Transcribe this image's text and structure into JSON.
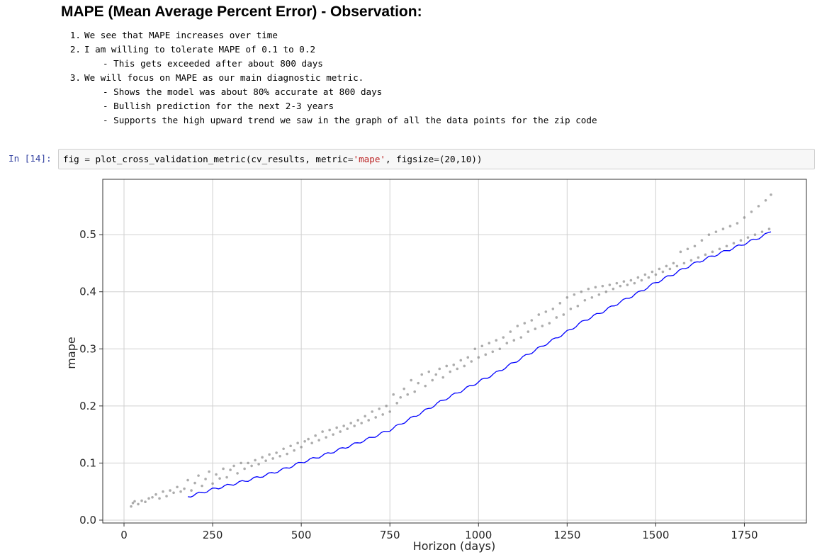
{
  "heading": "MAPE (Mean Average Percent Error) - Observation:",
  "observations": [
    {
      "num": "1.",
      "text": "We see that MAPE increases over time"
    },
    {
      "num": "2.",
      "text": "I am willing to tolerate MAPE of 0.1 to 0.2"
    },
    {
      "sub": "- This gets exceeded after about 800 days"
    },
    {
      "num": "3.",
      "text": "We will focus on MAPE as our main diagnostic metric."
    },
    {
      "sub": "- Shows the model was about 80% accurate at 800 days"
    },
    {
      "sub": "- Bullish prediction for the next 2-3 years"
    },
    {
      "sub": "- Supports the high upward trend we saw in the graph of all the data points for the zip code"
    }
  ],
  "cell": {
    "prompt": "In [14]:",
    "code_a": "fig ",
    "code_op": "=",
    "code_b": " plot_cross_validation_metric(cv_results, metric",
    "code_op2": "=",
    "code_str": "'mape'",
    "code_c": ", figsize",
    "code_op3": "=",
    "code_d": "(20,10))"
  },
  "chart_data": {
    "type": "line",
    "xlabel": "Horizon (days)",
    "ylabel": "mape",
    "xlim": [
      -60,
      1925
    ],
    "ylim": [
      -0.005,
      0.597
    ],
    "xticks": [
      0,
      250,
      500,
      750,
      1000,
      1250,
      1500,
      1750
    ],
    "yticks": [
      0.0,
      0.1,
      0.2,
      0.3,
      0.4,
      0.5
    ],
    "grid": true,
    "line_color": "#0000ff",
    "scatter_color": "#808080",
    "series": [
      {
        "kind": "line",
        "x": [
          180,
          250,
          300,
          350,
          400,
          450,
          500,
          550,
          600,
          650,
          700,
          750,
          800,
          850,
          900,
          950,
          1000,
          1050,
          1100,
          1150,
          1200,
          1250,
          1300,
          1350,
          1400,
          1450,
          1500,
          1550,
          1600,
          1650,
          1700,
          1750,
          1800,
          1825
        ],
        "y": [
          0.041,
          0.054,
          0.062,
          0.07,
          0.079,
          0.089,
          0.101,
          0.111,
          0.122,
          0.133,
          0.145,
          0.158,
          0.175,
          0.192,
          0.21,
          0.226,
          0.242,
          0.258,
          0.276,
          0.294,
          0.312,
          0.33,
          0.35,
          0.365,
          0.382,
          0.398,
          0.416,
          0.431,
          0.447,
          0.46,
          0.472,
          0.484,
          0.497,
          0.505
        ]
      },
      {
        "kind": "scatter",
        "x": [
          20,
          25,
          30,
          40,
          50,
          60,
          70,
          80,
          90,
          100,
          110,
          120,
          130,
          140,
          150,
          160,
          170,
          180,
          190,
          200,
          210,
          220,
          230,
          240,
          250,
          260,
          270,
          280,
          290,
          300,
          310,
          320,
          330,
          340,
          350,
          360,
          370,
          380,
          390,
          400,
          410,
          420,
          430,
          440,
          450,
          460,
          470,
          480,
          490,
          500,
          510,
          520,
          530,
          540,
          550,
          560,
          570,
          580,
          590,
          600,
          610,
          620,
          630,
          640,
          650,
          660,
          670,
          680,
          690,
          700,
          710,
          720,
          730,
          740,
          750,
          760,
          770,
          780,
          790,
          800,
          810,
          820,
          830,
          840,
          850,
          860,
          870,
          880,
          890,
          900,
          910,
          920,
          930,
          940,
          950,
          960,
          970,
          980,
          990,
          1000,
          1010,
          1020,
          1030,
          1040,
          1050,
          1060,
          1070,
          1080,
          1090,
          1100,
          1110,
          1120,
          1130,
          1140,
          1150,
          1160,
          1170,
          1180,
          1190,
          1200,
          1210,
          1220,
          1230,
          1240,
          1250,
          1260,
          1270,
          1280,
          1290,
          1300,
          1310,
          1320,
          1330,
          1340,
          1350,
          1360,
          1370,
          1380,
          1390,
          1400,
          1410,
          1420,
          1430,
          1440,
          1450,
          1460,
          1470,
          1480,
          1490,
          1500,
          1510,
          1520,
          1530,
          1540,
          1550,
          1560,
          1570,
          1580,
          1590,
          1600,
          1610,
          1620,
          1630,
          1640,
          1650,
          1660,
          1670,
          1680,
          1690,
          1700,
          1710,
          1720,
          1730,
          1740,
          1750,
          1760,
          1770,
          1780,
          1790,
          1800,
          1810,
          1820,
          1825
        ],
        "y": [
          0.024,
          0.03,
          0.033,
          0.028,
          0.034,
          0.032,
          0.038,
          0.04,
          0.045,
          0.038,
          0.05,
          0.042,
          0.052,
          0.048,
          0.058,
          0.05,
          0.055,
          0.07,
          0.052,
          0.065,
          0.078,
          0.06,
          0.072,
          0.085,
          0.064,
          0.08,
          0.073,
          0.09,
          0.075,
          0.088,
          0.095,
          0.082,
          0.1,
          0.09,
          0.1,
          0.095,
          0.105,
          0.098,
          0.11,
          0.104,
          0.115,
          0.108,
          0.118,
          0.112,
          0.125,
          0.116,
          0.13,
          0.122,
          0.135,
          0.128,
          0.138,
          0.142,
          0.135,
          0.148,
          0.14,
          0.155,
          0.145,
          0.158,
          0.15,
          0.162,
          0.155,
          0.165,
          0.16,
          0.17,
          0.165,
          0.175,
          0.17,
          0.182,
          0.175,
          0.19,
          0.18,
          0.195,
          0.185,
          0.2,
          0.19,
          0.22,
          0.205,
          0.215,
          0.23,
          0.22,
          0.245,
          0.225,
          0.24,
          0.255,
          0.235,
          0.26,
          0.245,
          0.255,
          0.265,
          0.25,
          0.27,
          0.26,
          0.272,
          0.265,
          0.28,
          0.27,
          0.285,
          0.278,
          0.3,
          0.285,
          0.305,
          0.29,
          0.31,
          0.295,
          0.315,
          0.3,
          0.32,
          0.31,
          0.33,
          0.315,
          0.34,
          0.32,
          0.345,
          0.33,
          0.35,
          0.335,
          0.36,
          0.34,
          0.365,
          0.345,
          0.37,
          0.355,
          0.38,
          0.36,
          0.39,
          0.37,
          0.395,
          0.375,
          0.4,
          0.385,
          0.405,
          0.39,
          0.408,
          0.395,
          0.41,
          0.4,
          0.412,
          0.405,
          0.415,
          0.41,
          0.418,
          0.412,
          0.42,
          0.415,
          0.425,
          0.42,
          0.43,
          0.425,
          0.435,
          0.43,
          0.44,
          0.435,
          0.445,
          0.44,
          0.45,
          0.445,
          0.47,
          0.45,
          0.475,
          0.455,
          0.48,
          0.46,
          0.49,
          0.465,
          0.5,
          0.47,
          0.505,
          0.475,
          0.51,
          0.48,
          0.515,
          0.485,
          0.52,
          0.49,
          0.53,
          0.495,
          0.54,
          0.5,
          0.55,
          0.505,
          0.56,
          0.51,
          0.57
        ]
      }
    ]
  }
}
